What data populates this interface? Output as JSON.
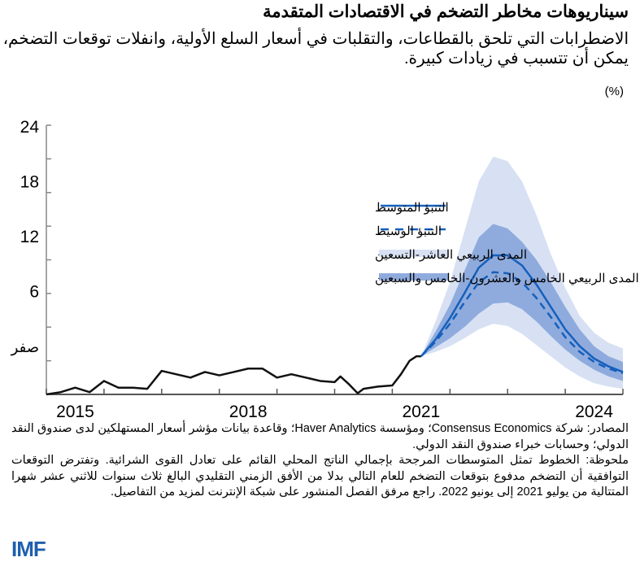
{
  "title": "سيناريوهات مخاطر التضخم في الاقتصادات المتقدمة",
  "subtitle": "الاضطرابات التي تلحق بالقطاعات، والتقلبات في أسعار السلع الأولية، وانفلات توقعات التضخم، يمكن أن تتسبب في زيادات كبيرة.",
  "unit": "(%)",
  "notes": {
    "sources": "المصادر: شركة Consensus Economics؛ ومؤسسة Haver Analytics؛ وقاعدة بيانات مؤشر أسعار المستهلكين لدى صندوق النقد الدولي؛ وحسابات خبراء صندوق النقد الدولي.",
    "note": "ملحوظة: الخطوط تمثل المتوسطات المرجحة بإجمالي الناتج المحلي القائم على تعادل القوى الشرائية. وتفترض التوقعات التوافقية أن التضخم مدفوع بتوقعات التضخم للعام التالي بدلا من الأفق الزمني التقليدي البالغ ثلاث سنوات للاثني عشر شهرا المتتالية من يوليو 2021 إلى يونيو 2022. راجع مرفق الفصل المنشور على شبكة الإنترنت لمزيد من التفاصيل."
  },
  "logo": "IMF",
  "colors": {
    "historical": "#111111",
    "forecast": "#1560bd",
    "band_10_90": "#d7e1f3",
    "band_25_75": "#8fabdd"
  },
  "chart_data": {
    "type": "line",
    "ylim": [
      0,
      24
    ],
    "xlim": [
      2015,
      2025
    ],
    "yticks": [
      0,
      3,
      6,
      9,
      12,
      15,
      18,
      21,
      24
    ],
    "ytick_labels": [
      "24",
      "18",
      "12",
      "6",
      "صفر"
    ],
    "xtick_labels": [
      "2015",
      "2018",
      "2021",
      "2024"
    ],
    "xtick_label_years": [
      2015,
      2018,
      2021,
      2024
    ],
    "legend_placement": "center",
    "historical": {
      "x": [
        2015.0,
        2015.25,
        2015.5,
        2015.75,
        2016.0,
        2016.25,
        2016.5,
        2016.75,
        2017.0,
        2017.25,
        2017.5,
        2017.75,
        2018.0,
        2018.25,
        2018.5,
        2018.75,
        2019.0,
        2019.25,
        2019.5,
        2019.75,
        2020.0,
        2020.1,
        2020.25,
        2020.4,
        2020.5,
        2020.75,
        2021.0,
        2021.15,
        2021.3,
        2021.42,
        2021.5
      ],
      "y": [
        0.0,
        0.2,
        0.6,
        0.2,
        1.2,
        0.6,
        0.6,
        0.5,
        2.1,
        1.8,
        1.5,
        2.0,
        1.7,
        2.0,
        2.3,
        2.3,
        1.5,
        1.8,
        1.5,
        1.2,
        1.1,
        1.6,
        0.9,
        0.1,
        0.5,
        0.7,
        0.8,
        1.8,
        3.0,
        3.4,
        3.4
      ]
    },
    "forecast_x": [
      2021.5,
      2021.75,
      2022.0,
      2022.25,
      2022.5,
      2022.75,
      2023.0,
      2023.25,
      2023.5,
      2023.75,
      2024.0,
      2024.25,
      2024.5,
      2024.75,
      2025.0
    ],
    "series": [
      {
        "name": "التنبؤ المتوسط",
        "style": "solid",
        "values": [
          3.4,
          4.9,
          6.8,
          9.0,
          11.3,
          12.4,
          12.4,
          11.5,
          9.8,
          7.8,
          5.8,
          4.3,
          3.2,
          2.5,
          2.0
        ]
      },
      {
        "name": "التنبؤ الوسيط",
        "style": "dashed",
        "values": [
          3.4,
          4.7,
          6.3,
          8.2,
          10.0,
          10.9,
          10.8,
          10.0,
          8.6,
          6.9,
          5.1,
          3.8,
          2.9,
          2.3,
          1.9
        ]
      }
    ],
    "bands": [
      {
        "name": "المدى الربيعي العاشر-التسعين",
        "upper": [
          3.4,
          6.5,
          10.0,
          14.5,
          19.0,
          21.2,
          20.8,
          19.0,
          16.0,
          12.5,
          9.5,
          7.0,
          5.5,
          4.6,
          4.1
        ],
        "lower": [
          3.4,
          3.8,
          4.3,
          5.0,
          5.8,
          6.3,
          6.1,
          5.4,
          4.4,
          3.4,
          2.4,
          1.6,
          1.0,
          0.7,
          0.5
        ]
      },
      {
        "name": "المدى الربيعي الخامس والعشرون-الخامس والسبعين",
        "upper": [
          3.4,
          5.6,
          8.0,
          11.0,
          14.0,
          15.2,
          14.8,
          13.6,
          12.0,
          10.0,
          7.8,
          5.8,
          4.3,
          3.4,
          2.9
        ],
        "lower": [
          3.4,
          4.2,
          5.0,
          6.0,
          7.2,
          8.1,
          8.2,
          7.6,
          6.5,
          5.2,
          4.0,
          3.0,
          2.2,
          1.6,
          1.2
        ]
      }
    ]
  }
}
